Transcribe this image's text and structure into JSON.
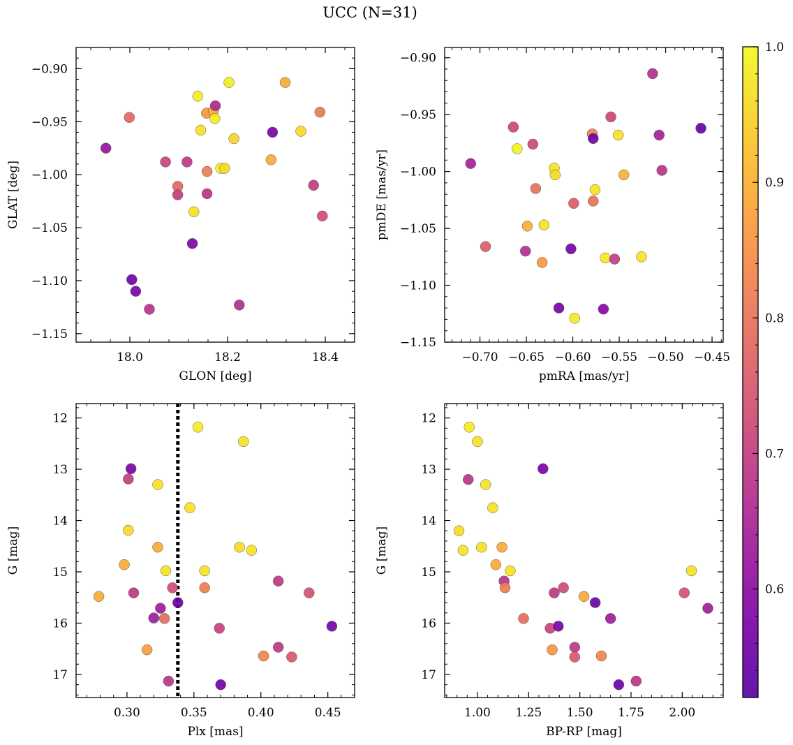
{
  "title": "UCC (N=31)",
  "colorbar": {
    "range": [
      0.52,
      1.0
    ],
    "ticks": [
      0.6,
      0.7,
      0.8,
      0.9,
      1.0
    ],
    "cmap": "plasma"
  },
  "chart_data": [
    {
      "type": "scatter",
      "name": "glon-glat",
      "xlabel": "GLON [deg]",
      "ylabel": "GLAT [deg]",
      "xlim": [
        17.89,
        18.46
      ],
      "ylim": [
        -1.158,
        -0.88
      ],
      "xticks": [
        18.0,
        18.2,
        18.4
      ],
      "yticks": [
        -0.9,
        -0.95,
        -1.0,
        -1.05,
        -1.1,
        -1.15
      ],
      "points": [
        {
          "x": 17.951,
          "y": -0.975,
          "c": 0.62
        },
        {
          "x": 17.999,
          "y": -0.946,
          "c": 0.78
        },
        {
          "x": 18.004,
          "y": -1.099,
          "c": 0.56
        },
        {
          "x": 18.012,
          "y": -1.11,
          "c": 0.57
        },
        {
          "x": 18.04,
          "y": -1.127,
          "c": 0.68
        },
        {
          "x": 18.073,
          "y": -0.988,
          "c": 0.71
        },
        {
          "x": 18.098,
          "y": -1.011,
          "c": 0.78
        },
        {
          "x": 18.098,
          "y": -1.019,
          "c": 0.7
        },
        {
          "x": 18.117,
          "y": -0.988,
          "c": 0.69
        },
        {
          "x": 18.128,
          "y": -1.065,
          "c": 0.58
        },
        {
          "x": 18.131,
          "y": -1.035,
          "c": 0.97
        },
        {
          "x": 18.139,
          "y": -0.926,
          "c": 0.98
        },
        {
          "x": 18.145,
          "y": -0.958,
          "c": 0.97
        },
        {
          "x": 18.157,
          "y": -0.942,
          "c": 0.86
        },
        {
          "x": 18.158,
          "y": -0.997,
          "c": 0.82
        },
        {
          "x": 18.158,
          "y": -1.018,
          "c": 0.68
        },
        {
          "x": 18.171,
          "y": -0.94,
          "c": 0.9
        },
        {
          "x": 18.175,
          "y": -0.935,
          "c": 0.66
        },
        {
          "x": 18.174,
          "y": -0.947,
          "c": 0.98
        },
        {
          "x": 18.186,
          "y": -0.994,
          "c": 0.99
        },
        {
          "x": 18.194,
          "y": -0.994,
          "c": 0.96
        },
        {
          "x": 18.203,
          "y": -0.913,
          "c": 0.98
        },
        {
          "x": 18.213,
          "y": -0.966,
          "c": 0.95
        },
        {
          "x": 18.224,
          "y": -1.123,
          "c": 0.67
        },
        {
          "x": 18.289,
          "y": -0.986,
          "c": 0.89
        },
        {
          "x": 18.292,
          "y": -0.96,
          "c": 0.57
        },
        {
          "x": 18.318,
          "y": -0.913,
          "c": 0.89
        },
        {
          "x": 18.35,
          "y": -0.959,
          "c": 0.96
        },
        {
          "x": 18.376,
          "y": -1.01,
          "c": 0.7
        },
        {
          "x": 18.389,
          "y": -0.941,
          "c": 0.81
        },
        {
          "x": 18.394,
          "y": -1.039,
          "c": 0.73
        }
      ]
    },
    {
      "type": "scatter",
      "name": "pmra-pmde",
      "xlabel": "pmRA [mas/yr]",
      "ylabel": "pmDE [mas/yr]",
      "xlim": [
        -0.738,
        -0.438
      ],
      "ylim": [
        -1.15,
        -0.891
      ],
      "xticks": [
        -0.7,
        -0.65,
        -0.6,
        -0.55,
        -0.5,
        -0.45
      ],
      "yticks": [
        -0.9,
        -0.95,
        -1.0,
        -1.05,
        -1.1,
        -1.15
      ],
      "points": [
        {
          "x": -0.71,
          "y": -0.993,
          "c": 0.64
        },
        {
          "x": -0.694,
          "y": -1.066,
          "c": 0.76
        },
        {
          "x": -0.664,
          "y": -0.961,
          "c": 0.72
        },
        {
          "x": -0.66,
          "y": -0.98,
          "c": 0.99
        },
        {
          "x": -0.651,
          "y": -1.07,
          "c": 0.67
        },
        {
          "x": -0.649,
          "y": -1.048,
          "c": 0.9
        },
        {
          "x": -0.643,
          "y": -0.976,
          "c": 0.72
        },
        {
          "x": -0.64,
          "y": -1.015,
          "c": 0.8
        },
        {
          "x": -0.633,
          "y": -1.08,
          "c": 0.86
        },
        {
          "x": -0.631,
          "y": -1.047,
          "c": 0.97
        },
        {
          "x": -0.62,
          "y": -0.997,
          "c": 0.97
        },
        {
          "x": -0.619,
          "y": -1.003,
          "c": 0.96
        },
        {
          "x": -0.615,
          "y": -1.12,
          "c": 0.57
        },
        {
          "x": -0.602,
          "y": -1.068,
          "c": 0.57
        },
        {
          "x": -0.599,
          "y": -1.028,
          "c": 0.76
        },
        {
          "x": -0.598,
          "y": -1.129,
          "c": 0.98
        },
        {
          "x": -0.579,
          "y": -0.967,
          "c": 0.83
        },
        {
          "x": -0.578,
          "y": -0.971,
          "c": 0.56
        },
        {
          "x": -0.578,
          "y": -1.026,
          "c": 0.8
        },
        {
          "x": -0.576,
          "y": -1.016,
          "c": 0.97
        },
        {
          "x": -0.567,
          "y": -1.121,
          "c": 0.59
        },
        {
          "x": -0.565,
          "y": -1.076,
          "c": 0.98
        },
        {
          "x": -0.559,
          "y": -0.952,
          "c": 0.72
        },
        {
          "x": -0.555,
          "y": -1.077,
          "c": 0.7
        },
        {
          "x": -0.551,
          "y": -0.968,
          "c": 0.97
        },
        {
          "x": -0.545,
          "y": -1.003,
          "c": 0.9
        },
        {
          "x": -0.526,
          "y": -1.075,
          "c": 0.97
        },
        {
          "x": -0.514,
          "y": -0.914,
          "c": 0.67
        },
        {
          "x": -0.507,
          "y": -0.968,
          "c": 0.64
        },
        {
          "x": -0.504,
          "y": -0.999,
          "c": 0.68
        },
        {
          "x": -0.462,
          "y": -0.962,
          "c": 0.55
        }
      ]
    },
    {
      "type": "scatter",
      "name": "plx-g",
      "xlabel": "Plx [mas]",
      "ylabel": "G [mag]",
      "xlim": [
        0.262,
        0.47
      ],
      "ylim": [
        17.45,
        11.72
      ],
      "xticks": [
        0.3,
        0.35,
        0.4,
        0.45
      ],
      "yticks": [
        12,
        13,
        14,
        15,
        16,
        17
      ],
      "vline": 0.338,
      "points": [
        {
          "x": 0.279,
          "y": 15.48,
          "c": 0.89
        },
        {
          "x": 0.298,
          "y": 14.86,
          "c": 0.89
        },
        {
          "x": 0.301,
          "y": 14.19,
          "c": 0.96
        },
        {
          "x": 0.301,
          "y": 13.19,
          "c": 0.7
        },
        {
          "x": 0.303,
          "y": 12.99,
          "c": 0.57
        },
        {
          "x": 0.305,
          "y": 15.41,
          "c": 0.69
        },
        {
          "x": 0.315,
          "y": 16.52,
          "c": 0.87
        },
        {
          "x": 0.32,
          "y": 15.9,
          "c": 0.63
        },
        {
          "x": 0.323,
          "y": 13.3,
          "c": 0.97
        },
        {
          "x": 0.323,
          "y": 14.52,
          "c": 0.89
        },
        {
          "x": 0.325,
          "y": 15.71,
          "c": 0.63
        },
        {
          "x": 0.328,
          "y": 15.91,
          "c": 0.79
        },
        {
          "x": 0.329,
          "y": 14.98,
          "c": 0.97
        },
        {
          "x": 0.331,
          "y": 17.13,
          "c": 0.68
        },
        {
          "x": 0.334,
          "y": 15.31,
          "c": 0.73
        },
        {
          "x": 0.338,
          "y": 15.6,
          "c": 0.55
        },
        {
          "x": 0.347,
          "y": 13.75,
          "c": 0.97
        },
        {
          "x": 0.353,
          "y": 12.18,
          "c": 0.98
        },
        {
          "x": 0.358,
          "y": 14.98,
          "c": 0.97
        },
        {
          "x": 0.358,
          "y": 15.31,
          "c": 0.82
        },
        {
          "x": 0.369,
          "y": 16.1,
          "c": 0.71
        },
        {
          "x": 0.37,
          "y": 17.2,
          "c": 0.56
        },
        {
          "x": 0.384,
          "y": 14.52,
          "c": 0.96
        },
        {
          "x": 0.387,
          "y": 12.46,
          "c": 0.97
        },
        {
          "x": 0.393,
          "y": 14.58,
          "c": 0.97
        },
        {
          "x": 0.402,
          "y": 16.64,
          "c": 0.83
        },
        {
          "x": 0.413,
          "y": 15.18,
          "c": 0.69
        },
        {
          "x": 0.413,
          "y": 16.47,
          "c": 0.69
        },
        {
          "x": 0.423,
          "y": 16.66,
          "c": 0.75
        },
        {
          "x": 0.436,
          "y": 15.41,
          "c": 0.74
        },
        {
          "x": 0.453,
          "y": 16.06,
          "c": 0.57
        }
      ]
    },
    {
      "type": "scatter",
      "name": "bprp-g",
      "xlabel": "BP-RP [mag]",
      "ylabel": "G [mag]",
      "xlim": [
        0.84,
        2.2
      ],
      "ylim": [
        17.45,
        11.72
      ],
      "xticks": [
        1.0,
        1.25,
        1.5,
        1.75,
        2.0
      ],
      "yticks": [
        12,
        13,
        14,
        15,
        16,
        17
      ],
      "points": [
        {
          "x": 0.91,
          "y": 14.2,
          "c": 0.96
        },
        {
          "x": 0.93,
          "y": 14.58,
          "c": 0.97
        },
        {
          "x": 0.955,
          "y": 13.2,
          "c": 0.68
        },
        {
          "x": 0.96,
          "y": 12.18,
          "c": 0.98
        },
        {
          "x": 1.0,
          "y": 12.46,
          "c": 0.97
        },
        {
          "x": 1.02,
          "y": 14.52,
          "c": 0.97
        },
        {
          "x": 1.04,
          "y": 13.3,
          "c": 0.97
        },
        {
          "x": 1.075,
          "y": 13.75,
          "c": 0.97
        },
        {
          "x": 1.09,
          "y": 14.86,
          "c": 0.89
        },
        {
          "x": 1.12,
          "y": 14.52,
          "c": 0.89
        },
        {
          "x": 1.13,
          "y": 15.18,
          "c": 0.68
        },
        {
          "x": 1.135,
          "y": 15.31,
          "c": 0.82
        },
        {
          "x": 1.16,
          "y": 14.98,
          "c": 0.97
        },
        {
          "x": 1.225,
          "y": 15.91,
          "c": 0.79
        },
        {
          "x": 1.32,
          "y": 12.99,
          "c": 0.57
        },
        {
          "x": 1.355,
          "y": 16.1,
          "c": 0.71
        },
        {
          "x": 1.365,
          "y": 16.52,
          "c": 0.86
        },
        {
          "x": 1.375,
          "y": 15.41,
          "c": 0.69
        },
        {
          "x": 1.395,
          "y": 16.06,
          "c": 0.57
        },
        {
          "x": 1.42,
          "y": 15.31,
          "c": 0.73
        },
        {
          "x": 1.475,
          "y": 16.47,
          "c": 0.69
        },
        {
          "x": 1.475,
          "y": 16.66,
          "c": 0.75
        },
        {
          "x": 1.52,
          "y": 15.48,
          "c": 0.89
        },
        {
          "x": 1.575,
          "y": 15.6,
          "c": 0.55
        },
        {
          "x": 1.605,
          "y": 16.64,
          "c": 0.83
        },
        {
          "x": 1.65,
          "y": 15.91,
          "c": 0.63
        },
        {
          "x": 1.69,
          "y": 17.2,
          "c": 0.56
        },
        {
          "x": 1.775,
          "y": 17.13,
          "c": 0.68
        },
        {
          "x": 2.01,
          "y": 15.41,
          "c": 0.74
        },
        {
          "x": 2.045,
          "y": 14.98,
          "c": 0.97
        },
        {
          "x": 2.125,
          "y": 15.71,
          "c": 0.63
        }
      ]
    }
  ]
}
